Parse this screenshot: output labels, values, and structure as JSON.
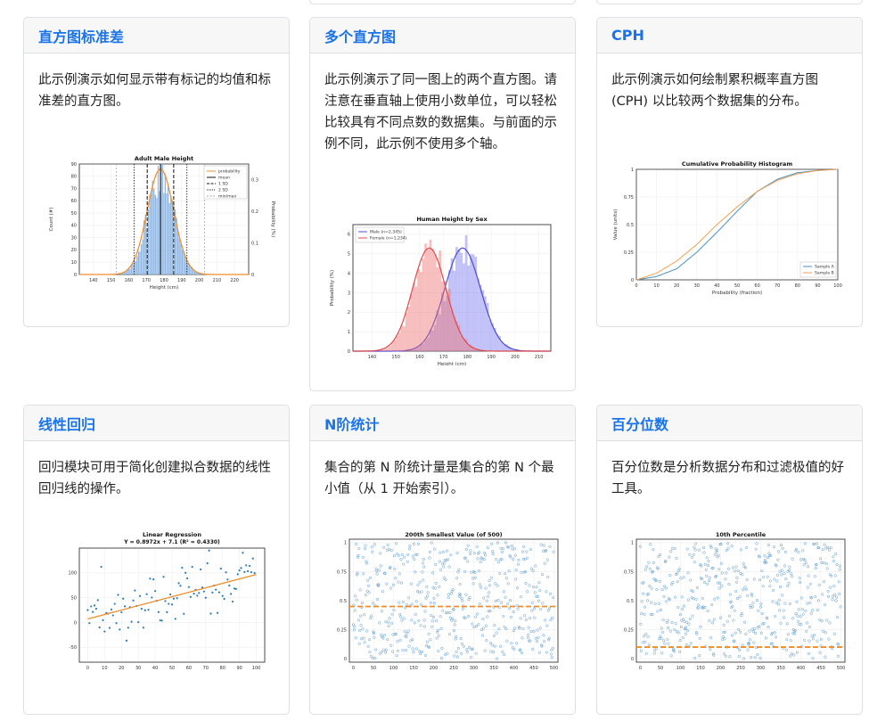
{
  "cards": [
    {
      "title": "直方图标准差",
      "description": "此示例演示如何显示带有标记的均值和标准差的直方图。",
      "chart_data": {
        "type": "bar",
        "title": "Adult Male Height",
        "xlabel": "Height (cm)",
        "ylabel": "Count (#)",
        "ylabel_right": "Probability (%)",
        "x_ticks": [
          "140",
          "150",
          "160",
          "170",
          "180",
          "190",
          "200",
          "210",
          "220"
        ],
        "y_ticks": [
          "0",
          "10",
          "20",
          "30",
          "40",
          "50",
          "60",
          "70",
          "80",
          "90"
        ],
        "y2_ticks": [
          "0",
          "0.1",
          "0.2",
          "0.3"
        ],
        "xlim": [
          132,
          228
        ],
        "ylim": [
          0,
          90
        ],
        "mean": 178,
        "sd": 7.5,
        "legend": [
          "probability",
          "mean",
          "1 SD",
          "2 SD",
          "min/max"
        ],
        "legend_position": "top-right"
      }
    },
    {
      "title": "多个直方图",
      "description": "此示例演示了同一图上的两个直方图。请注意在垂直轴上使用小数单位，可以轻松比较具有不同点数的数据集。与前面的示例不同，此示例不使用多个轴。",
      "chart_data": {
        "type": "bar",
        "title": "Human Height by Sex",
        "xlabel": "Height (cm)",
        "ylabel": "Probability (%)",
        "x_ticks": [
          "140",
          "150",
          "160",
          "170",
          "180",
          "190",
          "200",
          "210"
        ],
        "y_ticks": [
          "0",
          "1",
          "2",
          "3",
          "4",
          "5",
          "6"
        ],
        "xlim": [
          132,
          215
        ],
        "ylim": [
          0,
          6.5
        ],
        "series": [
          {
            "name": "Male (n=2,345)",
            "mean": 178,
            "sd": 7.5,
            "color": "#4c4cdc"
          },
          {
            "name": "Female (n=1,234)",
            "mean": 164,
            "sd": 7,
            "color": "#e04848"
          }
        ],
        "legend_position": "top-left"
      }
    },
    {
      "title": "CPH",
      "description": "此示例演示如何绘制累积概率直方图 (CPH) 以比较两个数据集的分布。",
      "chart_data": {
        "type": "line",
        "title": "Cumulative Probability Histogram",
        "xlabel": "Probability (fraction)",
        "ylabel": "Value (units)",
        "x_ticks": [
          "0",
          "10",
          "20",
          "30",
          "40",
          "50",
          "60",
          "70",
          "80",
          "90",
          "100"
        ],
        "y_ticks": [
          "0",
          "0.25",
          "0.5",
          "0.75",
          "1"
        ],
        "xlim": [
          0,
          100
        ],
        "ylim": [
          0,
          1
        ],
        "series": [
          {
            "name": "Sample A",
            "color": "#4a90c0",
            "x": [
              0,
              10,
              20,
              30,
              40,
              50,
              60,
              70,
              80,
              90,
              100
            ],
            "values": [
              0,
              0.03,
              0.1,
              0.25,
              0.43,
              0.62,
              0.8,
              0.91,
              0.97,
              0.99,
              1
            ]
          },
          {
            "name": "Sample B",
            "color": "#f0a050",
            "x": [
              0,
              10,
              20,
              30,
              40,
              50,
              60,
              70,
              80,
              90,
              100
            ],
            "values": [
              0,
              0.06,
              0.17,
              0.32,
              0.5,
              0.66,
              0.8,
              0.9,
              0.96,
              0.99,
              1
            ]
          }
        ],
        "legend_position": "bottom-right"
      }
    },
    {
      "title": "线性回归",
      "description": "回归模块可用于简化创建拟合数据的线性回归线的操作。",
      "chart_data": {
        "type": "scatter",
        "title": "Linear Regression",
        "subtitle": "Y = 0.8972x + 7.1 (R² = 0.4330)",
        "x_ticks": [
          "0",
          "10",
          "20",
          "30",
          "40",
          "50",
          "60",
          "70",
          "80",
          "90",
          "100"
        ],
        "y_ticks": [
          "-50",
          "0",
          "50",
          "100"
        ],
        "xlim": [
          -5,
          105
        ],
        "ylim": [
          -80,
          150
        ],
        "slope": 0.8972,
        "intercept": 7.1
      }
    },
    {
      "title": "N阶统计",
      "description": "集合的第 N 阶统计量是集合的第 N 个最小值（从 1 开始索引）。",
      "chart_data": {
        "type": "scatter",
        "title": "200th Smallest Value (of 500)",
        "x_ticks": [
          "0",
          "50",
          "100",
          "150",
          "200",
          "250",
          "300",
          "350",
          "400",
          "450",
          "500"
        ],
        "y_ticks": [
          "0",
          "0.25",
          "0.5",
          "0.75",
          "1"
        ],
        "xlim": [
          -10,
          510
        ],
        "ylim": [
          -0.03,
          1.03
        ],
        "threshold": 0.45,
        "points": 500
      }
    },
    {
      "title": "百分位数",
      "description": "百分位数是分析数据分布和过滤极值的好工具。",
      "chart_data": {
        "type": "scatter",
        "title": "10th Percentile",
        "x_ticks": [
          "0",
          "50",
          "100",
          "150",
          "200",
          "250",
          "300",
          "350",
          "400",
          "450",
          "500"
        ],
        "y_ticks": [
          "0",
          "0.25",
          "0.5",
          "0.75",
          "1"
        ],
        "xlim": [
          -10,
          510
        ],
        "ylim": [
          -0.03,
          1.03
        ],
        "threshold": 0.1,
        "points": 500
      }
    }
  ]
}
